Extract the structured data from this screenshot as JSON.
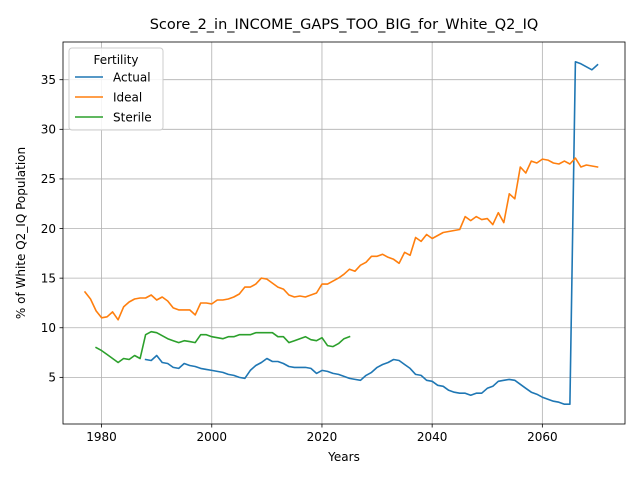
{
  "chart_data": {
    "type": "line",
    "title": "Score_2_in_INCOME_GAPS_TOO_BIG_for_White_Q2_IQ",
    "xlabel": "Years",
    "ylabel": "% of White Q2_IQ Population",
    "xlim": [
      1973,
      2075
    ],
    "ylim": [
      0.3,
      38.8
    ],
    "xticks": [
      1980,
      2000,
      2020,
      2040,
      2060
    ],
    "yticks": [
      5,
      10,
      15,
      20,
      25,
      30,
      35
    ],
    "grid": true,
    "legend": {
      "title": "Fertility",
      "placement": "top-left"
    },
    "series": [
      {
        "name": "Actual",
        "color": "#1f77b4",
        "x": [
          1988,
          1989,
          1990,
          1991,
          1992,
          1993,
          1994,
          1995,
          1996,
          1997,
          1998,
          1999,
          2000,
          2001,
          2002,
          2003,
          2004,
          2005,
          2006,
          2007,
          2008,
          2009,
          2010,
          2011,
          2012,
          2013,
          2014,
          2015,
          2016,
          2017,
          2018,
          2019,
          2020,
          2021,
          2022,
          2023,
          2024,
          2025,
          2026,
          2027,
          2028,
          2029,
          2030,
          2031,
          2032,
          2033,
          2034,
          2035,
          2036,
          2037,
          2038,
          2039,
          2040,
          2041,
          2042,
          2043,
          2044,
          2045,
          2046,
          2047,
          2048,
          2049,
          2050,
          2051,
          2052,
          2053,
          2054,
          2055,
          2056,
          2057,
          2058,
          2059,
          2060,
          2061,
          2062,
          2063,
          2064,
          2065,
          2066,
          2067,
          2068,
          2069,
          2070
        ],
        "y": [
          6.8,
          6.7,
          7.2,
          6.5,
          6.4,
          6.0,
          5.9,
          6.4,
          6.2,
          6.1,
          5.9,
          5.8,
          5.7,
          5.6,
          5.5,
          5.3,
          5.2,
          5.0,
          4.9,
          5.7,
          6.2,
          6.5,
          6.9,
          6.6,
          6.6,
          6.4,
          6.1,
          6.0,
          6.0,
          6.0,
          5.9,
          5.4,
          5.7,
          5.6,
          5.4,
          5.3,
          5.1,
          4.9,
          4.8,
          4.7,
          5.2,
          5.5,
          6.0,
          6.3,
          6.5,
          6.8,
          6.7,
          6.3,
          5.9,
          5.3,
          5.2,
          4.7,
          4.6,
          4.2,
          4.1,
          3.7,
          3.5,
          3.4,
          3.4,
          3.2,
          3.4,
          3.4,
          3.9,
          4.1,
          4.6,
          4.7,
          4.8,
          4.7,
          4.3,
          3.9,
          3.5,
          3.3,
          3.0,
          2.8,
          2.6,
          2.5,
          2.3,
          2.3,
          36.8,
          36.6,
          36.3,
          36.0,
          36.5
        ]
      },
      {
        "name": "Ideal",
        "color": "#ff7f0e",
        "x": [
          1977,
          1978,
          1979,
          1980,
          1981,
          1982,
          1983,
          1984,
          1985,
          1986,
          1987,
          1988,
          1989,
          1990,
          1991,
          1992,
          1993,
          1994,
          1995,
          1996,
          1997,
          1998,
          1999,
          2000,
          2001,
          2002,
          2003,
          2004,
          2005,
          2006,
          2007,
          2008,
          2009,
          2010,
          2011,
          2012,
          2013,
          2014,
          2015,
          2016,
          2017,
          2018,
          2019,
          2020,
          2021,
          2022,
          2023,
          2024,
          2025,
          2026,
          2027,
          2028,
          2029,
          2030,
          2031,
          2032,
          2033,
          2034,
          2035,
          2036,
          2037,
          2038,
          2039,
          2040,
          2041,
          2042,
          2043,
          2044,
          2045,
          2046,
          2047,
          2048,
          2049,
          2050,
          2051,
          2052,
          2053,
          2054,
          2055,
          2056,
          2057,
          2058,
          2059,
          2060,
          2061,
          2062,
          2063,
          2064,
          2065,
          2066,
          2067,
          2068,
          2069,
          2070
        ],
        "y": [
          13.6,
          12.9,
          11.7,
          11.0,
          11.1,
          11.6,
          10.8,
          12.1,
          12.6,
          12.9,
          13.0,
          13.0,
          13.3,
          12.8,
          13.1,
          12.7,
          12.0,
          11.8,
          11.8,
          11.8,
          11.3,
          12.5,
          12.5,
          12.4,
          12.8,
          12.8,
          12.9,
          13.1,
          13.4,
          14.1,
          14.1,
          14.4,
          15.0,
          14.9,
          14.5,
          14.1,
          13.9,
          13.3,
          13.1,
          13.2,
          13.1,
          13.3,
          13.5,
          14.4,
          14.4,
          14.7,
          15.0,
          15.4,
          15.9,
          15.7,
          16.3,
          16.6,
          17.2,
          17.2,
          17.4,
          17.1,
          16.9,
          16.5,
          17.6,
          17.3,
          19.1,
          18.7,
          19.4,
          19.0,
          19.3,
          19.6,
          19.7,
          19.8,
          19.9,
          21.2,
          20.8,
          21.2,
          20.9,
          21.0,
          20.4,
          21.6,
          20.6,
          23.5,
          23.0,
          26.2,
          25.6,
          26.8,
          26.6,
          27.0,
          26.9,
          26.6,
          26.5,
          26.8,
          26.5,
          27.1,
          26.2,
          26.4,
          26.3,
          26.2
        ]
      },
      {
        "name": "Sterile",
        "color": "#2ca02c",
        "x": [
          1979,
          1980,
          1981,
          1982,
          1983,
          1984,
          1985,
          1986,
          1987,
          1988,
          1989,
          1990,
          1991,
          1992,
          1993,
          1994,
          1995,
          1996,
          1997,
          1998,
          1999,
          2000,
          2001,
          2002,
          2003,
          2004,
          2005,
          2006,
          2007,
          2008,
          2009,
          2010,
          2011,
          2012,
          2013,
          2014,
          2015,
          2016,
          2017,
          2018,
          2019,
          2020,
          2021,
          2022,
          2023,
          2024,
          2025
        ],
        "y": [
          8.0,
          7.7,
          7.3,
          6.9,
          6.5,
          6.9,
          6.8,
          7.2,
          6.9,
          9.3,
          9.6,
          9.5,
          9.2,
          8.9,
          8.7,
          8.5,
          8.7,
          8.6,
          8.5,
          9.3,
          9.3,
          9.1,
          9.0,
          8.9,
          9.1,
          9.1,
          9.3,
          9.3,
          9.3,
          9.5,
          9.5,
          9.5,
          9.5,
          9.1,
          9.1,
          8.5,
          8.7,
          8.9,
          9.1,
          8.8,
          8.7,
          9.0,
          8.2,
          8.1,
          8.4,
          8.9,
          9.1
        ]
      }
    ]
  }
}
